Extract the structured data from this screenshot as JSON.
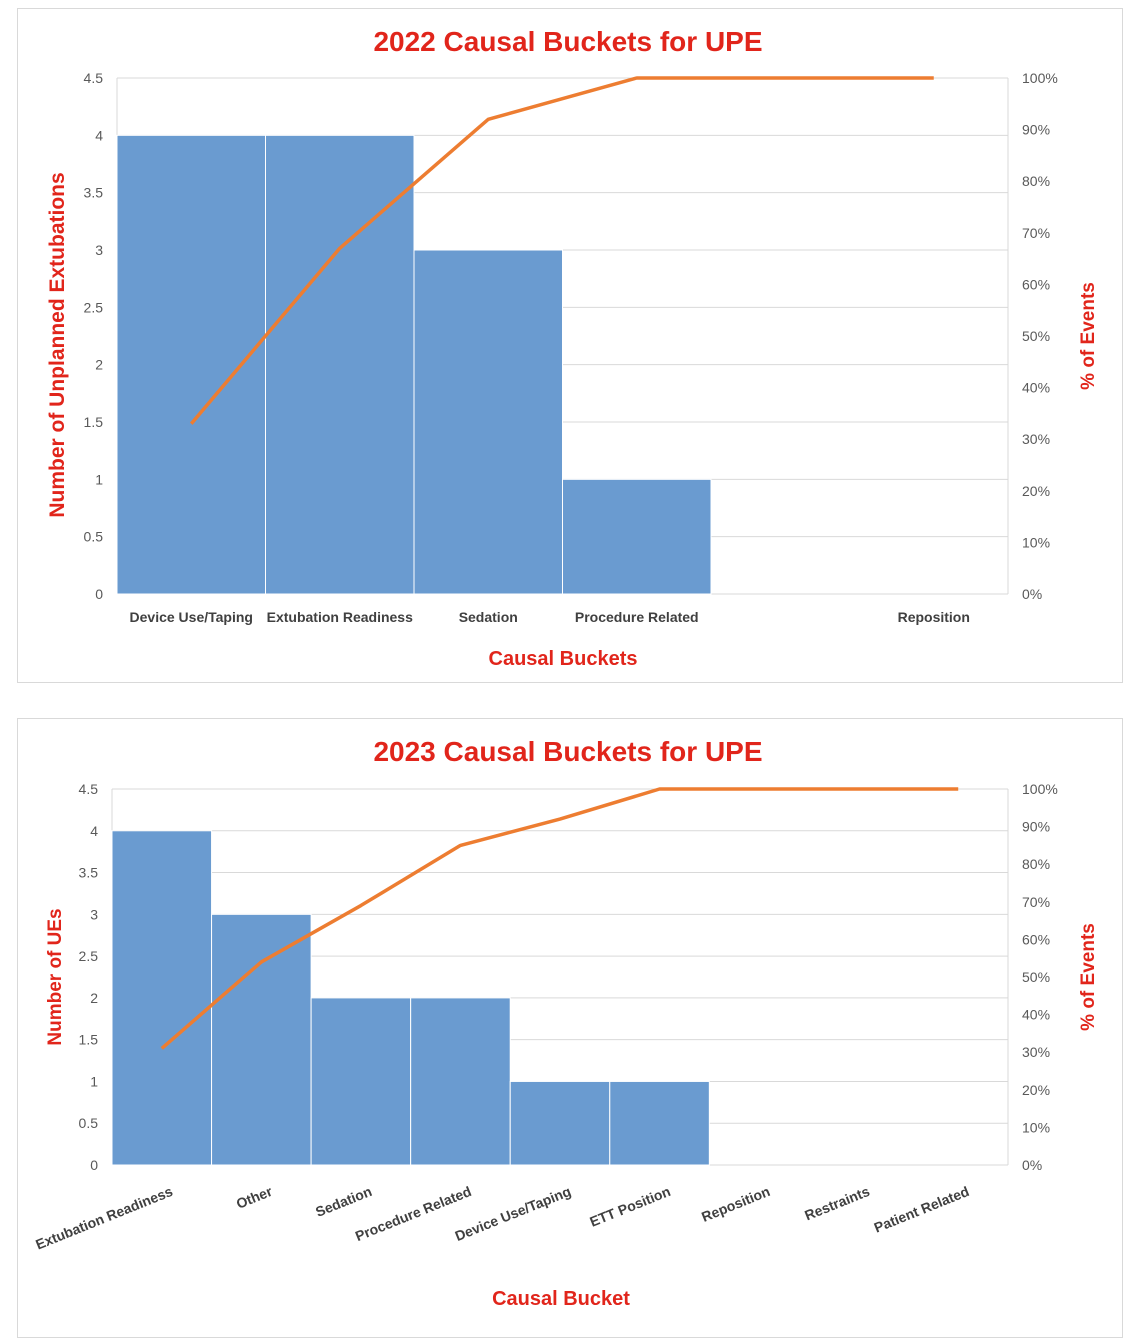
{
  "chart_data": [
    {
      "type": "bar",
      "title": "2022 Causal Buckets for UPE",
      "xlabel": "Causal Buckets",
      "ylabel": "Number of Unplanned Extubations",
      "y2label": "% of Events",
      "categories": [
        "Device Use/Taping",
        "Extubation Readiness",
        "Sedation",
        "Procedure Related",
        "",
        "Reposition"
      ],
      "values": [
        4,
        4,
        3,
        1,
        0,
        0
      ],
      "cumulative_percent": [
        33,
        67,
        92,
        100,
        100,
        100
      ],
      "ylim": [
        0,
        4.5
      ],
      "yticks": [
        "0",
        "0.5",
        "1",
        "1.5",
        "2",
        "2.5",
        "3",
        "3.5",
        "4",
        "4.5"
      ],
      "y2lim": [
        0,
        100
      ],
      "y2ticks": [
        "0%",
        "10%",
        "20%",
        "30%",
        "40%",
        "50%",
        "60%",
        "70%",
        "80%",
        "90%",
        "100%"
      ],
      "grid": true,
      "bar_color": "#6a9bd0",
      "line_color": "#ed7d31"
    },
    {
      "type": "bar",
      "title": "2023 Causal Buckets for UPE",
      "xlabel": "Causal Bucket",
      "ylabel": "Number of UEs",
      "y2label": "% of Events",
      "categories": [
        "Extubation Readiness",
        "Other",
        "Sedation",
        "Procedure Related",
        "Device Use/Taping",
        "ETT Position",
        "Reposition",
        "Restraints",
        "Patient Related"
      ],
      "values": [
        4,
        3,
        2,
        2,
        1,
        1,
        0,
        0,
        0
      ],
      "cumulative_percent": [
        31,
        54,
        69,
        85,
        92,
        100,
        100,
        100,
        100
      ],
      "ylim": [
        0,
        4.5
      ],
      "yticks": [
        "0",
        "0.5",
        "1",
        "1.5",
        "2",
        "2.5",
        "3",
        "3.5",
        "4",
        "4.5"
      ],
      "y2lim": [
        0,
        100
      ],
      "y2ticks": [
        "0%",
        "10%",
        "20%",
        "30%",
        "40%",
        "50%",
        "60%",
        "70%",
        "80%",
        "90%",
        "100%"
      ],
      "grid": true,
      "bar_color": "#6a9bd0",
      "line_color": "#ed7d31"
    }
  ]
}
